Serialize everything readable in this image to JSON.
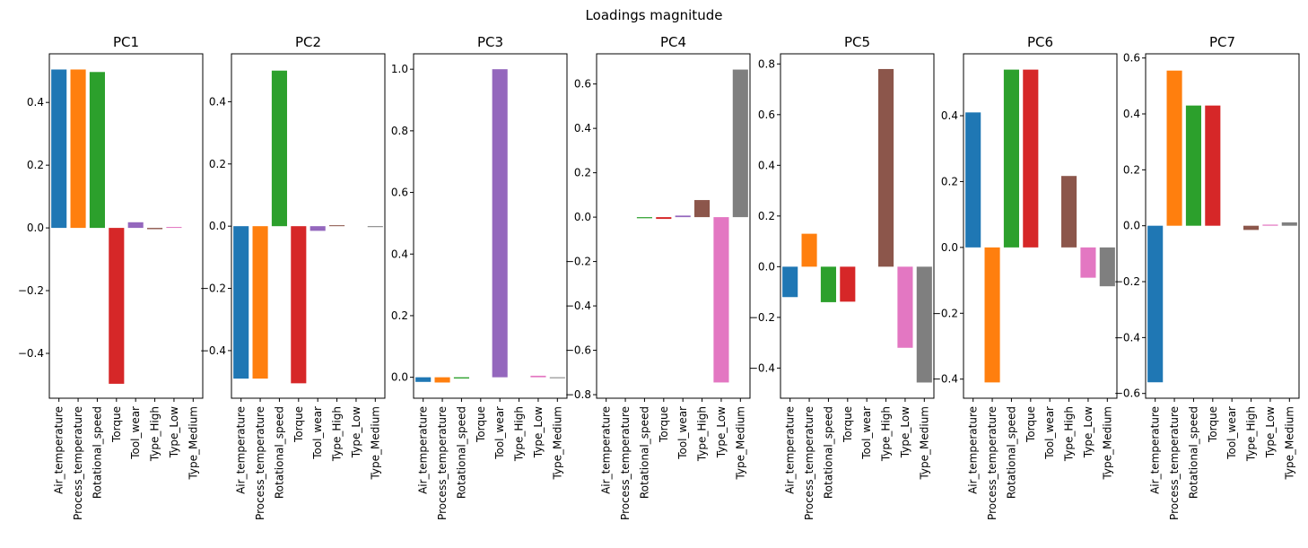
{
  "figure": {
    "title": "Loadings magnitude"
  },
  "colors": [
    "#1f77b4",
    "#ff7f0e",
    "#2ca02c",
    "#d62728",
    "#9467bd",
    "#8c564b",
    "#e377c2",
    "#7f7f7f"
  ],
  "chart_data": [
    {
      "type": "bar",
      "title": "PC1",
      "categories": [
        "Air_temperature",
        "Process_temperature",
        "Rotational_speed",
        "Torque",
        "Tool_wear",
        "Type_High",
        "Type_Low",
        "Type_Medium"
      ],
      "values": [
        0.505,
        0.505,
        0.497,
        -0.497,
        0.018,
        -0.004,
        0.003,
        0.0
      ],
      "ylim": [
        -0.543,
        0.555
      ],
      "yticks": [
        -0.4,
        -0.2,
        0.0,
        0.2,
        0.4
      ],
      "yticklabels": [
        "−0.4",
        "−0.2",
        "0.0",
        "0.2",
        "0.4"
      ]
    },
    {
      "type": "bar",
      "title": "PC2",
      "categories": [
        "Air_temperature",
        "Process_temperature",
        "Rotational_speed",
        "Torque",
        "Tool_wear",
        "Type_High",
        "Type_Low",
        "Type_Medium"
      ],
      "values": [
        -0.49,
        -0.49,
        0.5,
        -0.505,
        -0.015,
        0.003,
        0.0,
        -0.003
      ],
      "ylim": [
        -0.553,
        0.554
      ],
      "yticks": [
        -0.4,
        -0.2,
        0.0,
        0.2,
        0.4
      ],
      "yticklabels": [
        "−0.4",
        "−0.2",
        "0.0",
        "0.2",
        "0.4"
      ]
    },
    {
      "type": "bar",
      "title": "PC3",
      "categories": [
        "Air_temperature",
        "Process_temperature",
        "Rotational_speed",
        "Torque",
        "Tool_wear",
        "Type_High",
        "Type_Low",
        "Type_Medium"
      ],
      "values": [
        -0.015,
        -0.017,
        -0.004,
        0.0,
        1.0,
        0.0,
        0.005,
        -0.003
      ],
      "ylim": [
        -0.068,
        1.05
      ],
      "yticks": [
        0.0,
        0.2,
        0.4,
        0.6,
        0.8,
        1.0
      ],
      "yticklabels": [
        "0.0",
        "0.2",
        "0.4",
        "0.6",
        "0.8",
        "1.0"
      ]
    },
    {
      "type": "bar",
      "title": "PC4",
      "categories": [
        "Air_temperature",
        "Process_temperature",
        "Rotational_speed",
        "Torque",
        "Tool_wear",
        "Type_High",
        "Type_Low",
        "Type_Medium"
      ],
      "values": [
        0.0,
        0.0,
        -0.005,
        -0.008,
        0.007,
        0.077,
        -0.745,
        0.665
      ],
      "ylim": [
        -0.816,
        0.736
      ],
      "yticks": [
        -0.8,
        -0.6,
        -0.4,
        -0.2,
        0.0,
        0.2,
        0.4,
        0.6
      ],
      "yticklabels": [
        "−0.8",
        "−0.6",
        "−0.4",
        "−0.2",
        "0.0",
        "0.2",
        "0.4",
        "0.6"
      ]
    },
    {
      "type": "bar",
      "title": "PC5",
      "categories": [
        "Air_temperature",
        "Process_temperature",
        "Rotational_speed",
        "Torque",
        "Tool_wear",
        "Type_High",
        "Type_Low",
        "Type_Medium"
      ],
      "values": [
        -0.12,
        0.13,
        -0.14,
        -0.138,
        0.0,
        0.78,
        -0.32,
        -0.457
      ],
      "ylim": [
        -0.519,
        0.84
      ],
      "yticks": [
        -0.4,
        -0.2,
        0.0,
        0.2,
        0.4,
        0.6,
        0.8
      ],
      "yticklabels": [
        "−0.4",
        "−0.2",
        "0.0",
        "0.2",
        "0.4",
        "0.6",
        "0.8"
      ]
    },
    {
      "type": "bar",
      "title": "PC6",
      "categories": [
        "Air_temperature",
        "Process_temperature",
        "Rotational_speed",
        "Torque",
        "Tool_wear",
        "Type_High",
        "Type_Low",
        "Type_Medium"
      ],
      "values": [
        0.41,
        -0.41,
        0.54,
        0.54,
        0.0,
        0.217,
        -0.092,
        -0.118
      ],
      "ylim": [
        -0.458,
        0.588
      ],
      "yticks": [
        -0.4,
        -0.2,
        0.0,
        0.2,
        0.4
      ],
      "yticklabels": [
        "−0.4",
        "−0.2",
        "0.0",
        "0.2",
        "0.4"
      ]
    },
    {
      "type": "bar",
      "title": "PC7",
      "categories": [
        "Air_temperature",
        "Process_temperature",
        "Rotational_speed",
        "Torque",
        "Tool_wear",
        "Type_High",
        "Type_Low",
        "Type_Medium"
      ],
      "values": [
        -0.56,
        0.555,
        0.43,
        0.43,
        0.0,
        -0.015,
        0.004,
        0.012
      ],
      "ylim": [
        -0.617,
        0.615
      ],
      "yticks": [
        -0.6,
        -0.4,
        -0.2,
        0.0,
        0.2,
        0.4,
        0.6
      ],
      "yticklabels": [
        "−0.6",
        "−0.4",
        "−0.2",
        "0.0",
        "0.2",
        "0.4",
        "0.6"
      ]
    }
  ]
}
